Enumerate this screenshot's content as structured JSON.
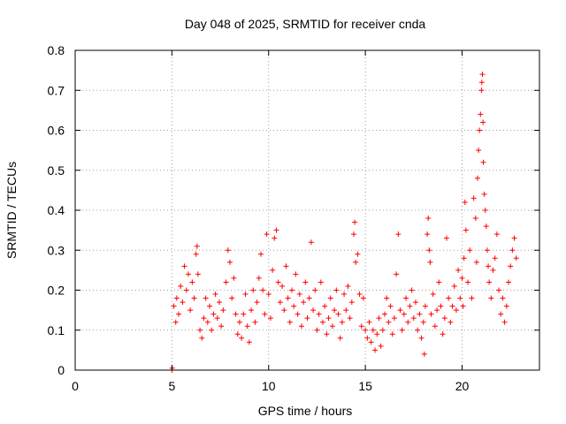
{
  "chart_data": {
    "type": "scatter",
    "title": "Day 048 of 2025, SRMTID for receiver cnda",
    "xlabel": "GPS time / hours",
    "ylabel": "SRMTID / TECUs",
    "xlim": [
      0,
      24
    ],
    "ylim": [
      0,
      0.8
    ],
    "xticks": [
      0,
      5,
      10,
      15,
      20
    ],
    "yticks": [
      0,
      0.1,
      0.2,
      0.3,
      0.4,
      0.5,
      0.6,
      0.7,
      0.8
    ],
    "grid": true,
    "marker": "+",
    "series": [
      {
        "name": "SRMTID",
        "color": "#ff0000",
        "points": [
          [
            5.0,
            0.0
          ],
          [
            5.02,
            0.005
          ],
          [
            5.1,
            0.16
          ],
          [
            5.2,
            0.12
          ],
          [
            5.25,
            0.18
          ],
          [
            5.35,
            0.14
          ],
          [
            5.45,
            0.21
          ],
          [
            5.55,
            0.17
          ],
          [
            5.65,
            0.26
          ],
          [
            5.75,
            0.2
          ],
          [
            5.85,
            0.24
          ],
          [
            5.95,
            0.15
          ],
          [
            6.05,
            0.22
          ],
          [
            6.15,
            0.18
          ],
          [
            6.25,
            0.29
          ],
          [
            6.3,
            0.31
          ],
          [
            6.35,
            0.24
          ],
          [
            6.45,
            0.1
          ],
          [
            6.55,
            0.08
          ],
          [
            6.65,
            0.13
          ],
          [
            6.75,
            0.18
          ],
          [
            6.85,
            0.12
          ],
          [
            6.95,
            0.16
          ],
          [
            7.05,
            0.1
          ],
          [
            7.15,
            0.14
          ],
          [
            7.25,
            0.19
          ],
          [
            7.35,
            0.13
          ],
          [
            7.45,
            0.17
          ],
          [
            7.55,
            0.11
          ],
          [
            7.65,
            0.15
          ],
          [
            7.8,
            0.22
          ],
          [
            7.9,
            0.3
          ],
          [
            8.0,
            0.27
          ],
          [
            8.1,
            0.18
          ],
          [
            8.2,
            0.23
          ],
          [
            8.3,
            0.14
          ],
          [
            8.4,
            0.09
          ],
          [
            8.5,
            0.12
          ],
          [
            8.6,
            0.08
          ],
          [
            8.7,
            0.14
          ],
          [
            8.8,
            0.19
          ],
          [
            8.9,
            0.11
          ],
          [
            9.0,
            0.07
          ],
          [
            9.1,
            0.15
          ],
          [
            9.2,
            0.2
          ],
          [
            9.3,
            0.12
          ],
          [
            9.4,
            0.17
          ],
          [
            9.5,
            0.23
          ],
          [
            9.6,
            0.29
          ],
          [
            9.7,
            0.2
          ],
          [
            9.8,
            0.14
          ],
          [
            9.9,
            0.34
          ],
          [
            10.0,
            0.19
          ],
          [
            10.1,
            0.13
          ],
          [
            10.2,
            0.25
          ],
          [
            10.3,
            0.33
          ],
          [
            10.4,
            0.35
          ],
          [
            10.5,
            0.22
          ],
          [
            10.6,
            0.17
          ],
          [
            10.7,
            0.21
          ],
          [
            10.8,
            0.15
          ],
          [
            10.9,
            0.26
          ],
          [
            11.0,
            0.18
          ],
          [
            11.1,
            0.12
          ],
          [
            11.2,
            0.2
          ],
          [
            11.3,
            0.16
          ],
          [
            11.4,
            0.24
          ],
          [
            11.5,
            0.14
          ],
          [
            11.6,
            0.19
          ],
          [
            11.7,
            0.11
          ],
          [
            11.8,
            0.17
          ],
          [
            11.9,
            0.22
          ],
          [
            12.0,
            0.13
          ],
          [
            12.1,
            0.18
          ],
          [
            12.2,
            0.32
          ],
          [
            12.3,
            0.15
          ],
          [
            12.4,
            0.2
          ],
          [
            12.5,
            0.1
          ],
          [
            12.6,
            0.14
          ],
          [
            12.7,
            0.22
          ],
          [
            12.8,
            0.12
          ],
          [
            12.9,
            0.16
          ],
          [
            13.0,
            0.09
          ],
          [
            13.1,
            0.13
          ],
          [
            13.2,
            0.18
          ],
          [
            13.3,
            0.11
          ],
          [
            13.4,
            0.15
          ],
          [
            13.5,
            0.2
          ],
          [
            13.6,
            0.14
          ],
          [
            13.7,
            0.08
          ],
          [
            13.8,
            0.12
          ],
          [
            13.9,
            0.19
          ],
          [
            14.0,
            0.15
          ],
          [
            14.1,
            0.21
          ],
          [
            14.2,
            0.13
          ],
          [
            14.3,
            0.17
          ],
          [
            14.4,
            0.34
          ],
          [
            14.45,
            0.37
          ],
          [
            14.5,
            0.27
          ],
          [
            14.6,
            0.29
          ],
          [
            14.7,
            0.19
          ],
          [
            14.8,
            0.11
          ],
          [
            14.9,
            0.18
          ],
          [
            15.0,
            0.1
          ],
          [
            15.1,
            0.08
          ],
          [
            15.2,
            0.12
          ],
          [
            15.3,
            0.07
          ],
          [
            15.4,
            0.1
          ],
          [
            15.5,
            0.05
          ],
          [
            15.6,
            0.09
          ],
          [
            15.7,
            0.13
          ],
          [
            15.8,
            0.06
          ],
          [
            15.9,
            0.1
          ],
          [
            16.0,
            0.14
          ],
          [
            16.1,
            0.18
          ],
          [
            16.2,
            0.12
          ],
          [
            16.3,
            0.16
          ],
          [
            16.4,
            0.09
          ],
          [
            16.5,
            0.13
          ],
          [
            16.6,
            0.24
          ],
          [
            16.7,
            0.34
          ],
          [
            16.8,
            0.15
          ],
          [
            16.9,
            0.1
          ],
          [
            17.0,
            0.14
          ],
          [
            17.1,
            0.18
          ],
          [
            17.2,
            0.12
          ],
          [
            17.3,
            0.16
          ],
          [
            17.4,
            0.2
          ],
          [
            17.5,
            0.13
          ],
          [
            17.6,
            0.17
          ],
          [
            17.7,
            0.1
          ],
          [
            17.8,
            0.14
          ],
          [
            17.9,
            0.08
          ],
          [
            18.0,
            0.12
          ],
          [
            18.05,
            0.04
          ],
          [
            18.1,
            0.16
          ],
          [
            18.2,
            0.34
          ],
          [
            18.25,
            0.38
          ],
          [
            18.3,
            0.3
          ],
          [
            18.35,
            0.27
          ],
          [
            18.4,
            0.14
          ],
          [
            18.5,
            0.19
          ],
          [
            18.6,
            0.11
          ],
          [
            18.7,
            0.15
          ],
          [
            18.8,
            0.22
          ],
          [
            18.9,
            0.16
          ],
          [
            19.0,
            0.09
          ],
          [
            19.1,
            0.13
          ],
          [
            19.2,
            0.33
          ],
          [
            19.3,
            0.18
          ],
          [
            19.4,
            0.12
          ],
          [
            19.5,
            0.16
          ],
          [
            19.6,
            0.21
          ],
          [
            19.7,
            0.15
          ],
          [
            19.8,
            0.25
          ],
          [
            19.9,
            0.18
          ],
          [
            20.0,
            0.23
          ],
          [
            20.05,
            0.16
          ],
          [
            20.1,
            0.28
          ],
          [
            20.15,
            0.42
          ],
          [
            20.2,
            0.35
          ],
          [
            20.3,
            0.22
          ],
          [
            20.4,
            0.3
          ],
          [
            20.5,
            0.18
          ],
          [
            20.6,
            0.43
          ],
          [
            20.7,
            0.38
          ],
          [
            20.75,
            0.27
          ],
          [
            20.8,
            0.48
          ],
          [
            20.85,
            0.55
          ],
          [
            20.9,
            0.6
          ],
          [
            20.95,
            0.64
          ],
          [
            21.0,
            0.7
          ],
          [
            21.02,
            0.72
          ],
          [
            21.05,
            0.74
          ],
          [
            21.08,
            0.62
          ],
          [
            21.1,
            0.52
          ],
          [
            21.15,
            0.44
          ],
          [
            21.2,
            0.4
          ],
          [
            21.25,
            0.36
          ],
          [
            21.3,
            0.3
          ],
          [
            21.35,
            0.26
          ],
          [
            21.4,
            0.22
          ],
          [
            21.5,
            0.18
          ],
          [
            21.6,
            0.25
          ],
          [
            21.7,
            0.28
          ],
          [
            21.8,
            0.34
          ],
          [
            21.9,
            0.2
          ],
          [
            22.0,
            0.14
          ],
          [
            22.1,
            0.18
          ],
          [
            22.2,
            0.12
          ],
          [
            22.3,
            0.16
          ],
          [
            22.4,
            0.22
          ],
          [
            22.5,
            0.26
          ],
          [
            22.6,
            0.3
          ],
          [
            22.7,
            0.33
          ],
          [
            22.8,
            0.28
          ]
        ]
      }
    ]
  }
}
